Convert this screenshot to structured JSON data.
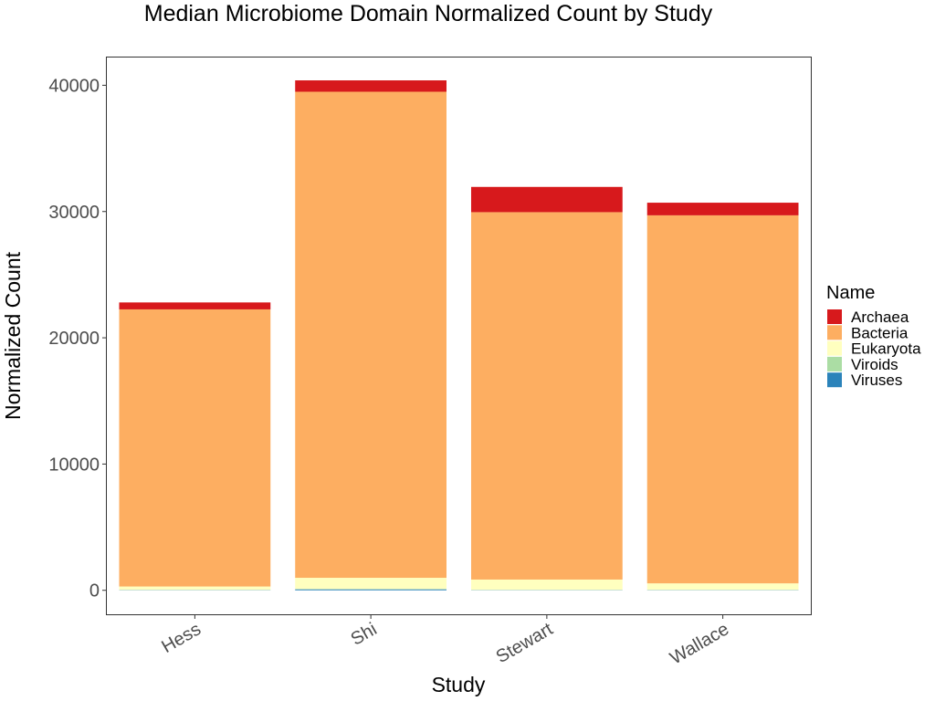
{
  "chart_data": {
    "type": "bar",
    "stacked": true,
    "title": "Median Microbiome Domain Normalized Count by Study",
    "xlabel": "Study",
    "ylabel": "Normalized Count",
    "categories": [
      "Hess",
      "Shi",
      "Stewart",
      "Wallace"
    ],
    "ylim": [
      -1900,
      42200
    ],
    "yticks": [
      0,
      10000,
      20000,
      30000,
      40000
    ],
    "yticklabels": [
      "0",
      "10000",
      "20000",
      "30000",
      "40000"
    ],
    "grid": false,
    "legend": {
      "title": "Name",
      "position": "right"
    },
    "series": [
      {
        "name": "Viruses",
        "color": "#2b83ba",
        "values": [
          20,
          80,
          20,
          20
        ]
      },
      {
        "name": "Viroids",
        "color": "#abdda4",
        "values": [
          10,
          10,
          10,
          10
        ]
      },
      {
        "name": "Eukaryota",
        "color": "#ffffbf",
        "values": [
          270,
          900,
          820,
          520
        ]
      },
      {
        "name": "Bacteria",
        "color": "#fdae61",
        "values": [
          21950,
          38500,
          29100,
          29150
        ]
      },
      {
        "name": "Archaea",
        "color": "#d7191c",
        "values": [
          550,
          900,
          2000,
          1000
        ]
      }
    ],
    "legend_order": [
      "Archaea",
      "Bacteria",
      "Eukaryota",
      "Viroids",
      "Viruses"
    ]
  }
}
